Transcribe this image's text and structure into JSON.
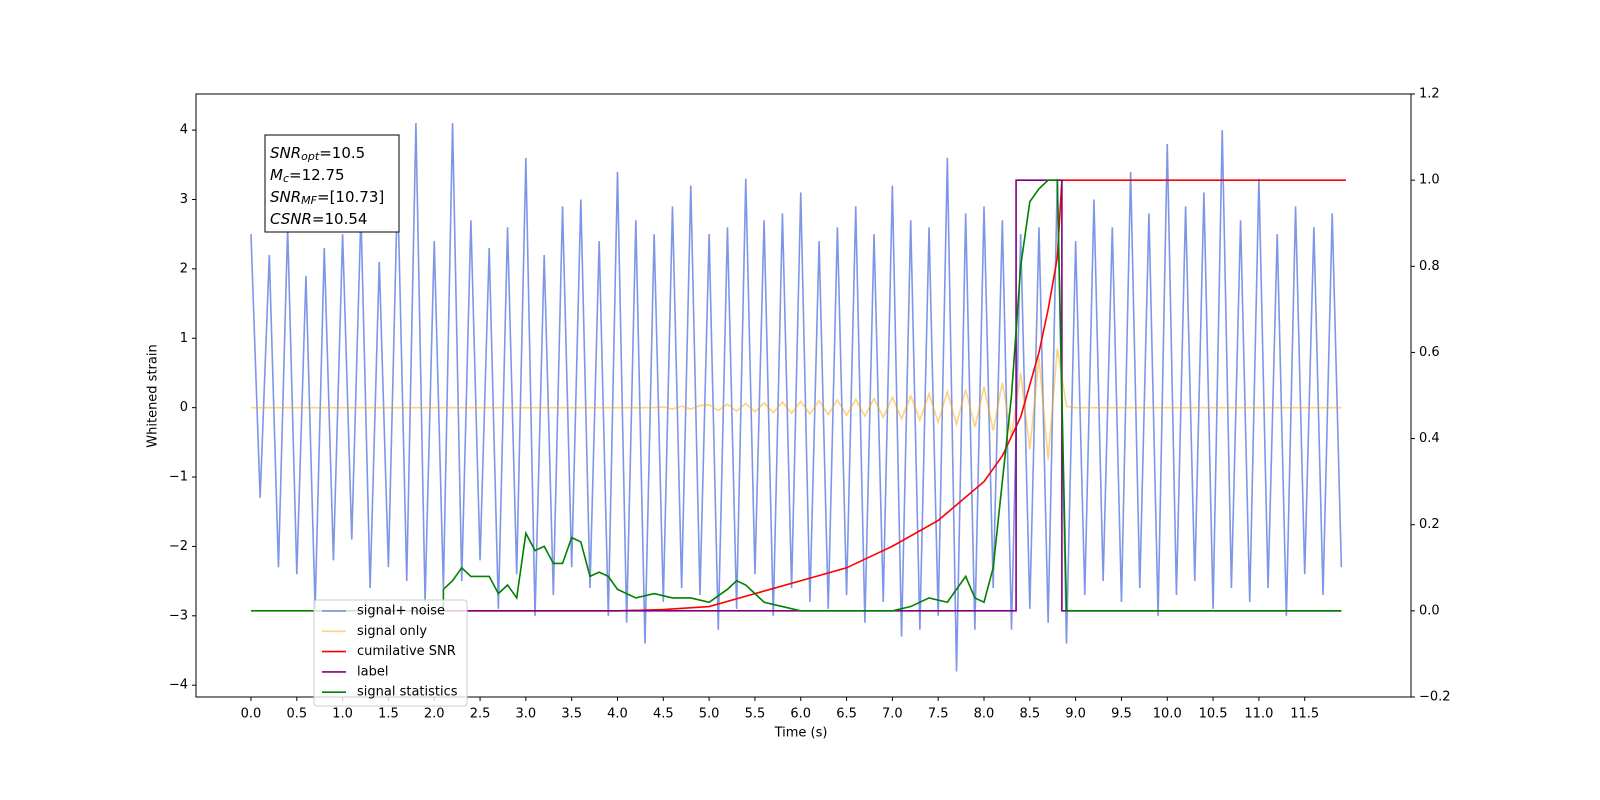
{
  "chart_data": {
    "type": "line",
    "xlabel": "Time (s)",
    "ylabel": "Whitened strain",
    "xlim": [
      -0.6,
      12.66
    ],
    "ylim": [
      -4.17,
      4.52
    ],
    "y2lim": [
      -0.2,
      1.2
    ],
    "xticks": [
      {
        "value": 0,
        "label": "0.0"
      },
      0.5,
      {
        "value": 1,
        "label": "1.0"
      },
      1.5,
      {
        "value": 2,
        "label": "2.0"
      },
      2.5,
      {
        "value": 3,
        "label": "3.0"
      },
      3.5,
      {
        "value": 4,
        "label": "4.0"
      },
      4.5,
      {
        "value": 5,
        "label": "5.0"
      },
      5.5,
      {
        "value": 6,
        "label": "6.0"
      },
      6.5,
      {
        "value": 7,
        "label": "7.0"
      },
      7.5,
      {
        "value": 8,
        "label": "8.0"
      },
      8.5,
      {
        "value": 9,
        "label": "9.0"
      },
      9.5,
      {
        "value": 10,
        "label": "10.0"
      },
      10.5,
      {
        "value": 11,
        "label": "11.0"
      },
      11.5
    ],
    "yticks": [
      {
        "value": -4,
        "label": "−4"
      },
      {
        "value": -3,
        "label": "−3"
      },
      {
        "value": -2,
        "label": "−2"
      },
      {
        "value": -1,
        "label": "−1"
      },
      0,
      1,
      2,
      3,
      4
    ],
    "y2ticks": [
      {
        "value": -0.2,
        "label": "−0.2"
      },
      {
        "value": 0,
        "label": "0.0"
      },
      0.2,
      0.4,
      0.6,
      0.8,
      {
        "value": 1,
        "label": "1.0"
      },
      1.2
    ],
    "annotation": [
      {
        "text": "SNR",
        "sub": "opt",
        "rest": "=10.5"
      },
      {
        "text": "M",
        "sub": "c",
        "rest": "=12.75"
      },
      {
        "text": "SNR",
        "sub": "MF",
        "rest": "=[10.73]"
      },
      {
        "text": "CSNR",
        "rest": "=10.54"
      }
    ],
    "series": [
      {
        "name": "signal+ noise",
        "color": "#6f8be6",
        "x": [
          0,
          0.1,
          0.2,
          0.3,
          0.4,
          0.5,
          0.6,
          0.7,
          0.8,
          0.9,
          1,
          1.1,
          1.2,
          1.3,
          1.4,
          1.5,
          1.6,
          1.7,
          1.8,
          1.9,
          2,
          2.1,
          2.2,
          2.3,
          2.4,
          2.5,
          2.6,
          2.7,
          2.8,
          2.9,
          3,
          3.1,
          3.2,
          3.3,
          3.4,
          3.5,
          3.6,
          3.7,
          3.8,
          3.9,
          4,
          4.1,
          4.2,
          4.3,
          4.4,
          4.5,
          4.6,
          4.7,
          4.8,
          4.9,
          5,
          5.1,
          5.2,
          5.3,
          5.4,
          5.5,
          5.6,
          5.7,
          5.8,
          5.9,
          6,
          6.1,
          6.2,
          6.3,
          6.4,
          6.5,
          6.6,
          6.7,
          6.8,
          6.9,
          7,
          7.1,
          7.2,
          7.3,
          7.4,
          7.5,
          7.6,
          7.7,
          7.8,
          7.9,
          8,
          8.1,
          8.2,
          8.3,
          8.4,
          8.5,
          8.6,
          8.7,
          8.8,
          8.9,
          9,
          9.1,
          9.2,
          9.3,
          9.4,
          9.5,
          9.6,
          9.7,
          9.8,
          9.9,
          10,
          10.1,
          10.2,
          10.3,
          10.4,
          10.5,
          10.6,
          10.7,
          10.8,
          10.9,
          11,
          11.1,
          11.2,
          11.3,
          11.4,
          11.5,
          11.6,
          11.7,
          11.8,
          11.9
        ],
        "values": [
          2.5,
          -1.3,
          2.2,
          -2.3,
          2.6,
          -2.4,
          1.9,
          -2.9,
          2.3,
          -2.2,
          2.5,
          -1.9,
          2.8,
          -2.6,
          2.1,
          -2.3,
          3.2,
          -2.5,
          4.1,
          -2.8,
          2.4,
          -2.6,
          4.1,
          -2.5,
          2.7,
          -2.2,
          2.3,
          -2.9,
          2.6,
          -2.4,
          3.6,
          -3.0,
          2.2,
          -2.7,
          2.9,
          -2.3,
          3.0,
          -2.6,
          2.4,
          -3.0,
          3.4,
          -3.1,
          2.7,
          -3.4,
          2.5,
          -2.8,
          2.9,
          -2.6,
          3.2,
          -2.7,
          2.5,
          -3.2,
          2.6,
          -2.9,
          3.3,
          -2.4,
          2.7,
          -3.0,
          2.8,
          -2.6,
          3.1,
          -2.8,
          2.4,
          -2.9,
          2.6,
          -2.7,
          2.9,
          -3.1,
          2.5,
          -2.8,
          3.2,
          -3.3,
          2.7,
          -3.2,
          2.6,
          -3.0,
          3.6,
          -3.8,
          2.8,
          -3.2,
          2.9,
          -2.6,
          2.7,
          -3.2,
          2.5,
          -2.9,
          2.6,
          -3.1,
          3.3,
          -3.4,
          2.4,
          -2.7,
          3.0,
          -2.5,
          2.6,
          -2.8,
          3.4,
          -2.6,
          2.8,
          -3.0,
          3.8,
          -2.7,
          2.9,
          -2.5,
          3.1,
          -2.9,
          4.0,
          -2.6,
          2.7,
          -2.8,
          3.3,
          -2.6,
          2.5,
          -3.0,
          2.9,
          -2.4,
          2.6,
          -2.7,
          2.8,
          -2.3
        ]
      },
      {
        "name": "signal only",
        "color": "#ffa500",
        "x": [
          0,
          0.1,
          0.2,
          0.3,
          0.4,
          0.5,
          0.6,
          0.7,
          0.8,
          0.9,
          1,
          1.1,
          1.2,
          1.3,
          1.4,
          1.5,
          1.6,
          1.7,
          1.8,
          1.9,
          2,
          2.1,
          2.2,
          2.3,
          2.4,
          2.5,
          2.6,
          2.7,
          2.8,
          2.9,
          3,
          3.1,
          3.2,
          3.3,
          3.4,
          3.5,
          3.6,
          3.7,
          3.8,
          3.9,
          4,
          4.1,
          4.2,
          4.3,
          4.4,
          4.5,
          4.6,
          4.7,
          4.8,
          4.9,
          5,
          5.1,
          5.2,
          5.3,
          5.4,
          5.5,
          5.6,
          5.7,
          5.8,
          5.9,
          6,
          6.1,
          6.2,
          6.3,
          6.4,
          6.5,
          6.6,
          6.7,
          6.8,
          6.9,
          7,
          7.1,
          7.2,
          7.3,
          7.4,
          7.5,
          7.6,
          7.7,
          7.8,
          7.9,
          8,
          8.1,
          8.2,
          8.3,
          8.4,
          8.5,
          8.6,
          8.7,
          8.8,
          8.9,
          9,
          9.1,
          9.2,
          9.3,
          9.4,
          9.5,
          9.6,
          9.7,
          9.8,
          9.9,
          10,
          10.1,
          10.2,
          10.3,
          10.4,
          10.5,
          10.6,
          10.7,
          10.8,
          10.9,
          11,
          11.1,
          11.2,
          11.3,
          11.4,
          11.5,
          11.6,
          11.7,
          11.8,
          11.9
        ],
        "values": [
          0,
          0,
          0,
          0,
          0,
          0,
          0,
          0,
          0,
          0,
          0,
          0,
          0,
          0,
          0,
          0,
          0,
          0,
          0,
          0,
          0,
          0,
          0,
          0,
          0,
          0,
          0,
          0,
          0,
          0,
          0,
          0,
          0,
          0,
          0,
          0,
          0,
          0,
          0,
          0,
          0,
          0,
          0,
          0,
          0,
          0.01,
          -0.02,
          0.02,
          -0.02,
          0.03,
          0.04,
          -0.04,
          0.05,
          -0.05,
          0.06,
          -0.06,
          0.07,
          -0.07,
          0.08,
          -0.08,
          0.09,
          -0.09,
          0.1,
          -0.1,
          0.11,
          -0.11,
          0.12,
          -0.12,
          0.13,
          -0.14,
          0.15,
          -0.16,
          0.17,
          -0.18,
          0.2,
          -0.21,
          0.23,
          -0.24,
          0.26,
          -0.28,
          0.3,
          -0.33,
          0.36,
          -0.42,
          0.5,
          -0.6,
          0.72,
          -0.75,
          0.85,
          0.02,
          0,
          0,
          0,
          0,
          0,
          0,
          0,
          0,
          0,
          0,
          0,
          0,
          0,
          0,
          0,
          0,
          0,
          0,
          0,
          0,
          0,
          0,
          0,
          0,
          0,
          0,
          0,
          0,
          0,
          0
        ]
      },
      {
        "name": "cumilative SNR",
        "color": "#ff0000",
        "axis": "y2",
        "x": [
          2.1,
          3,
          4,
          4.5,
          5,
          5.5,
          6,
          6.5,
          7,
          7.5,
          8,
          8.2,
          8.4,
          8.6,
          8.7,
          8.8,
          8.85,
          8.9,
          11.95
        ],
        "values": [
          0,
          0,
          0,
          0.003,
          0.01,
          0.04,
          0.07,
          0.1,
          0.15,
          0.21,
          0.3,
          0.36,
          0.45,
          0.6,
          0.7,
          0.82,
          1,
          1,
          1
        ]
      },
      {
        "name": "label",
        "color": "#800080",
        "axis": "y2",
        "x": [
          2.1,
          8.35,
          8.35,
          8.85,
          8.85,
          11.9
        ],
        "values": [
          0,
          0,
          1,
          1,
          0,
          0
        ]
      },
      {
        "name": "signal statistics",
        "color": "#008000",
        "axis": "y2",
        "x": [
          0,
          2.1,
          2.1,
          2.2,
          2.3,
          2.4,
          2.5,
          2.6,
          2.7,
          2.8,
          2.9,
          3,
          3.1,
          3.2,
          3.3,
          3.4,
          3.5,
          3.6,
          3.7,
          3.8,
          3.9,
          4,
          4.2,
          4.4,
          4.6,
          4.8,
          5,
          5.2,
          5.3,
          5.4,
          5.5,
          5.6,
          5.8,
          6,
          7,
          7.2,
          7.4,
          7.6,
          7.8,
          7.9,
          8,
          8.1,
          8.2,
          8.3,
          8.4,
          8.5,
          8.6,
          8.7,
          8.8,
          8.85,
          8.9,
          11.9
        ],
        "values": [
          0,
          0,
          0.05,
          0.07,
          0.1,
          0.08,
          0.08,
          0.08,
          0.04,
          0.06,
          0.03,
          0.18,
          0.14,
          0.15,
          0.11,
          0.11,
          0.17,
          0.16,
          0.08,
          0.09,
          0.08,
          0.05,
          0.03,
          0.04,
          0.03,
          0.03,
          0.02,
          0.05,
          0.07,
          0.06,
          0.04,
          0.02,
          0.01,
          0,
          0,
          0.01,
          0.03,
          0.02,
          0.08,
          0.03,
          0.02,
          0.1,
          0.3,
          0.5,
          0.8,
          0.95,
          0.98,
          1,
          1,
          0.5,
          0,
          0
        ]
      }
    ]
  }
}
